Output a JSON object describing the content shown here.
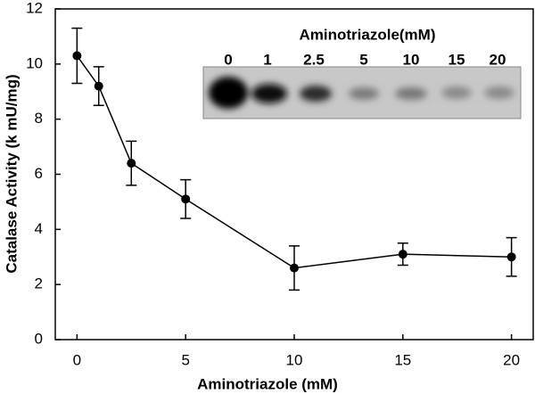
{
  "chart_data": {
    "type": "line",
    "x_label": "Aminotriazole (mM)",
    "y_label": "Catalase Activity (k mU/mg)",
    "x": [
      0,
      1,
      2.5,
      5,
      10,
      15,
      20
    ],
    "series": [
      {
        "color": "#000000",
        "values": [
          10.3,
          9.2,
          6.4,
          5.1,
          2.6,
          3.1,
          3.0
        ],
        "errors": [
          1.0,
          0.7,
          0.8,
          0.7,
          0.8,
          0.4,
          0.7
        ]
      }
    ],
    "xlim": [
      -1,
      21
    ],
    "ylim": [
      0,
      12
    ],
    "xticks": [
      0,
      5,
      10,
      15,
      20
    ],
    "yticks": [
      0,
      2,
      4,
      6,
      8,
      10,
      12
    ],
    "inset_title": "Aminotriazole(mM)",
    "inset_labels": [
      "0",
      "1",
      "2.5",
      "5",
      "10",
      "15",
      "20"
    ]
  }
}
